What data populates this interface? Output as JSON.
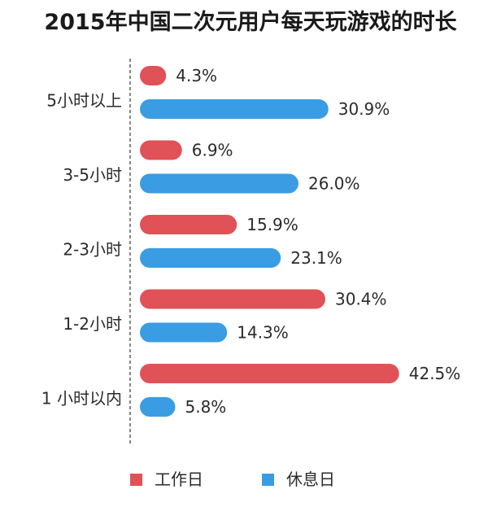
{
  "chart_data": {
    "type": "bar",
    "orientation": "horizontal",
    "title": "2015年中国二次元用户每天玩游戏的时长",
    "categories": [
      "5小时以上",
      "3-5小时",
      "2-3小时",
      "1-2小时",
      "1 小时以内"
    ],
    "series": [
      {
        "name": "工作日",
        "color": "#e05257",
        "values": [
          4.3,
          6.9,
          15.9,
          30.4,
          42.5
        ],
        "labels": [
          "4.3%",
          "6.9%",
          "15.9%",
          "30.4%",
          "42.5%"
        ]
      },
      {
        "name": "休息日",
        "color": "#3a9de3",
        "values": [
          30.9,
          26.0,
          23.1,
          14.3,
          5.8
        ],
        "labels": [
          "30.9%",
          "26.0%",
          "23.1%",
          "14.3%",
          "5.8%"
        ]
      }
    ],
    "xlim": [
      0,
      45
    ],
    "value_unit": "%",
    "legend_position": "bottom",
    "grid": false,
    "axis_line": "dashed",
    "bar_style": "rounded"
  }
}
